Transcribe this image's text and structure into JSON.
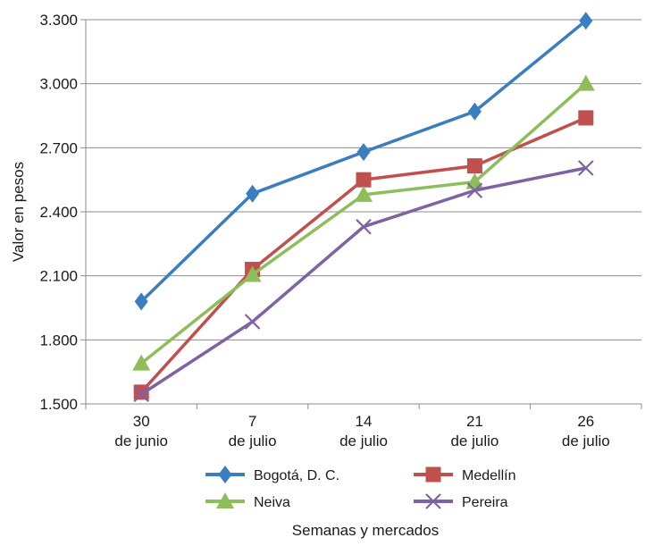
{
  "chart_data": {
    "type": "line",
    "title": "",
    "xlabel": "Semanas y mercados",
    "ylabel": "Valor en pesos",
    "ylim": [
      1500,
      3300
    ],
    "yticks": [
      1500,
      1800,
      2100,
      2400,
      2700,
      3000,
      3300
    ],
    "ytick_labels": [
      "1.500",
      "1.800",
      "2.100",
      "2.400",
      "2.700",
      "3.000",
      "3.300"
    ],
    "grid": "horizontal",
    "legend": "bottom",
    "categories": [
      [
        "30",
        "de junio"
      ],
      [
        "7",
        "de julio"
      ],
      [
        "14",
        "de julio"
      ],
      [
        "21",
        "de julio"
      ],
      [
        "26",
        "de julio"
      ]
    ],
    "series": [
      {
        "name": "Bogotá, D. C.",
        "color": "#3A7DC1",
        "marker": "diamond",
        "values": [
          1980,
          2485,
          2680,
          2870,
          3295
        ]
      },
      {
        "name": "Medellín",
        "color": "#C0504D",
        "marker": "square",
        "values": [
          1555,
          2130,
          2550,
          2615,
          2840
        ]
      },
      {
        "name": "Neiva",
        "color": "#8DBE5A",
        "marker": "triangle",
        "values": [
          1690,
          2105,
          2480,
          2540,
          3000
        ]
      },
      {
        "name": "Pereira",
        "color": "#7E63A2",
        "marker": "x",
        "values": [
          1545,
          1885,
          2330,
          2500,
          2605
        ]
      }
    ]
  }
}
